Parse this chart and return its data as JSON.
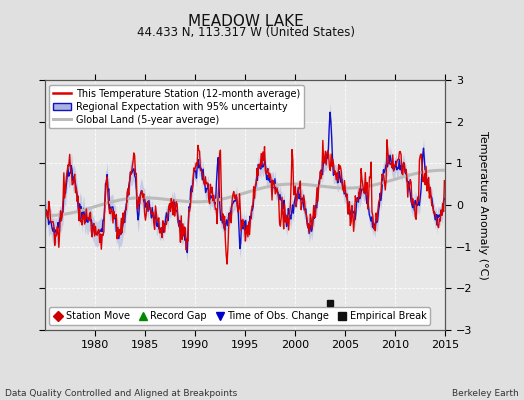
{
  "title": "MEADOW LAKE",
  "subtitle": "44.433 N, 113.317 W (United States)",
  "footer_left": "Data Quality Controlled and Aligned at Breakpoints",
  "footer_right": "Berkeley Earth",
  "ylabel": "Temperature Anomaly (°C)",
  "ylim": [
    -3,
    3
  ],
  "yticks": [
    -3,
    -2,
    -1,
    0,
    1,
    2,
    3
  ],
  "xlim": [
    1975,
    2015
  ],
  "xticks": [
    1980,
    1985,
    1990,
    1995,
    2000,
    2005,
    2010,
    2015
  ],
  "background_color": "#e0e0e0",
  "plot_background": "#e8e8e8",
  "grid_color": "#ffffff",
  "station_color": "#dd0000",
  "regional_color": "#1111cc",
  "regional_fill": "#aab4dd",
  "global_color": "#bbbbbb",
  "legend_labels": [
    "This Temperature Station (12-month average)",
    "Regional Expectation with 95% uncertainty",
    "Global Land (5-year average)"
  ],
  "marker_legend": [
    {
      "marker": "D",
      "color": "#cc0000",
      "label": "Station Move"
    },
    {
      "marker": "^",
      "color": "#008800",
      "label": "Record Gap"
    },
    {
      "marker": "v",
      "color": "#0000cc",
      "label": "Time of Obs. Change"
    },
    {
      "marker": "s",
      "color": "#111111",
      "label": "Empirical Break"
    }
  ],
  "empirical_break_x": 2003.5,
  "empirical_break_y": -2.35
}
